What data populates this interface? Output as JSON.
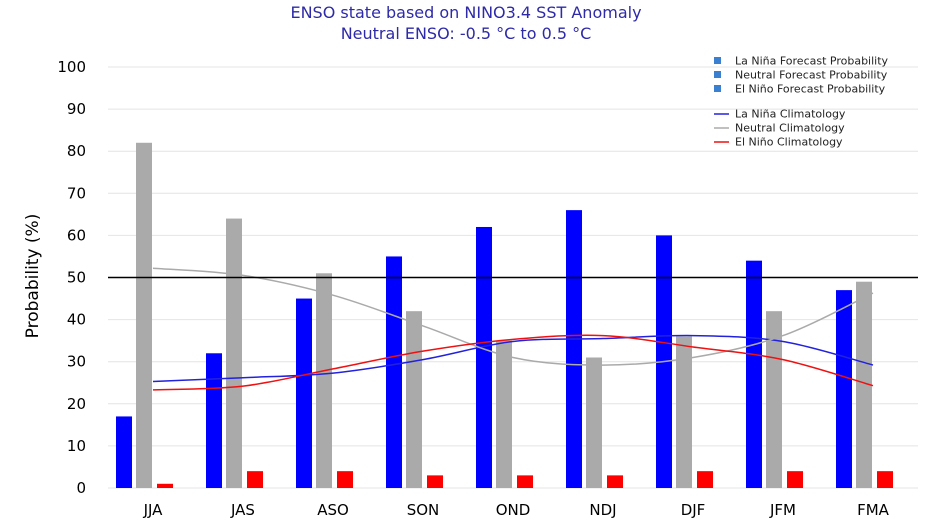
{
  "chart_data": {
    "type": "bar",
    "title": "ENSO state based on NINO3.4 SST Anomaly",
    "subtitle": "Neutral ENSO: -0.5 °C to 0.5 °C",
    "xlabel": "",
    "ylabel": "Probability (%)",
    "ylim": [
      0,
      100
    ],
    "yticks": [
      "0",
      "10",
      "20",
      "30",
      "40",
      "50",
      "60",
      "70",
      "80",
      "90",
      "100"
    ],
    "categories": [
      "JJA",
      "JAS",
      "ASO",
      "SON",
      "OND",
      "NDJ",
      "DJF",
      "JFM",
      "FMA"
    ],
    "reference_line": 50,
    "grid": true,
    "legend_position": "top-right",
    "series": [
      {
        "name": "La Niña Forecast Probability",
        "color": "#0000ff",
        "values": [
          17,
          32,
          45,
          55,
          62,
          66,
          60,
          54,
          47
        ]
      },
      {
        "name": "Neutral Forecast Probability",
        "color": "#aaaaaa",
        "values": [
          82,
          64,
          51,
          42,
          35,
          31,
          36,
          42,
          49
        ]
      },
      {
        "name": "El Niño Forecast Probability",
        "color": "#ff0000",
        "values": [
          1,
          4,
          4,
          3,
          3,
          3,
          4,
          4,
          4
        ]
      }
    ],
    "climatology": [
      {
        "name": "La Niña Climatology",
        "color": "#2222dd",
        "values": [
          25.3,
          26.2,
          27.3,
          30.5,
          34.8,
          35.5,
          36.2,
          34.8,
          29.2
        ]
      },
      {
        "name": "Neutral Climatology",
        "color": "#aaaaaa",
        "values": [
          52.2,
          50.5,
          45.8,
          38.5,
          31.0,
          29.2,
          31.0,
          36.2,
          46.3
        ]
      },
      {
        "name": "El Niño Climatology",
        "color": "#ee1111",
        "values": [
          23.3,
          24.2,
          28.3,
          32.5,
          35.3,
          36.2,
          33.5,
          30.5,
          24.3
        ]
      }
    ]
  }
}
